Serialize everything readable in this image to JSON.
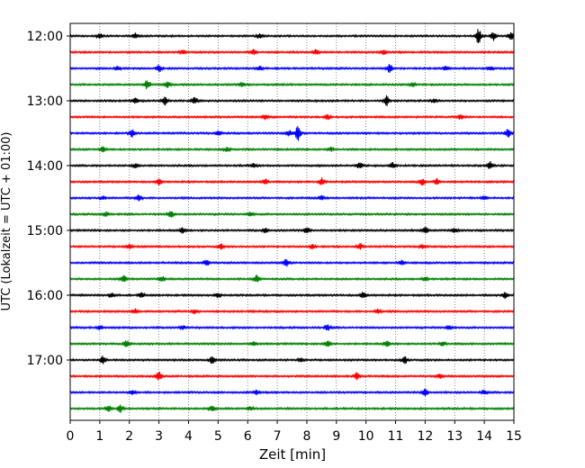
{
  "chart_data": {
    "type": "line",
    "title": "",
    "xlabel": "Zeit  [min]",
    "ylabel": "UTC (Lokalzeit = UTC + 01:00)",
    "xlim": [
      0,
      15
    ],
    "x_ticks": [
      "0",
      "1",
      "2",
      "3",
      "4",
      "5",
      "6",
      "7",
      "8",
      "9",
      "10",
      "11",
      "12",
      "13",
      "14",
      "15"
    ],
    "y_ticks": [
      "12:00",
      "13:00",
      "14:00",
      "15:00",
      "16:00",
      "17:00"
    ],
    "grid": "vertical dotted",
    "row_interval_minutes": 15,
    "trace_colors": [
      "#000000",
      "#ff0000",
      "#0000ff",
      "#008000"
    ],
    "series": [
      {
        "start": "12:00",
        "bursts": [
          [
            1.0,
            0.3
          ],
          [
            2.2,
            0.35
          ],
          [
            6.4,
            0.3
          ],
          [
            13.8,
            1.0
          ],
          [
            14.3,
            0.6
          ],
          [
            14.9,
            0.5
          ]
        ]
      },
      {
        "start": "12:15",
        "bursts": [
          [
            3.8,
            0.3
          ],
          [
            6.2,
            0.35
          ],
          [
            8.3,
            0.3
          ],
          [
            10.6,
            0.3
          ]
        ]
      },
      {
        "start": "12:30",
        "bursts": [
          [
            1.6,
            0.3
          ],
          [
            3.0,
            0.5
          ],
          [
            6.4,
            0.3
          ],
          [
            10.8,
            0.6
          ],
          [
            12.7,
            0.3
          ],
          [
            14.2,
            0.3
          ]
        ]
      },
      {
        "start": "12:45",
        "bursts": [
          [
            2.6,
            0.6
          ],
          [
            3.3,
            0.4
          ],
          [
            5.8,
            0.3
          ],
          [
            11.6,
            0.3
          ]
        ]
      },
      {
        "start": "13:00",
        "bursts": [
          [
            2.2,
            0.4
          ],
          [
            3.2,
            0.6
          ],
          [
            4.2,
            0.5
          ],
          [
            10.7,
            0.7
          ],
          [
            12.3,
            0.3
          ]
        ]
      },
      {
        "start": "13:15",
        "bursts": [
          [
            6.6,
            0.35
          ],
          [
            8.7,
            0.4
          ],
          [
            13.2,
            0.3
          ]
        ]
      },
      {
        "start": "13:30",
        "bursts": [
          [
            2.1,
            0.5
          ],
          [
            5.0,
            0.35
          ],
          [
            7.7,
            1.0
          ],
          [
            7.4,
            0.4
          ],
          [
            14.8,
            0.6
          ]
        ]
      },
      {
        "start": "13:45",
        "bursts": [
          [
            1.1,
            0.4
          ],
          [
            5.3,
            0.3
          ],
          [
            8.8,
            0.3
          ]
        ]
      },
      {
        "start": "14:00",
        "bursts": [
          [
            2.2,
            0.3
          ],
          [
            6.2,
            0.3
          ],
          [
            9.8,
            0.5
          ],
          [
            10.9,
            0.4
          ],
          [
            14.2,
            0.5
          ]
        ]
      },
      {
        "start": "14:15",
        "bursts": [
          [
            3.0,
            0.4
          ],
          [
            6.6,
            0.4
          ],
          [
            8.5,
            0.5
          ],
          [
            11.9,
            0.5
          ],
          [
            12.4,
            0.4
          ]
        ]
      },
      {
        "start": "14:30",
        "bursts": [
          [
            1.1,
            0.3
          ],
          [
            2.3,
            0.45
          ],
          [
            8.5,
            0.3
          ],
          [
            14.0,
            0.3
          ]
        ]
      },
      {
        "start": "14:45",
        "bursts": [
          [
            1.2,
            0.3
          ],
          [
            3.4,
            0.5
          ],
          [
            6.1,
            0.3
          ]
        ]
      },
      {
        "start": "15:00",
        "bursts": [
          [
            3.8,
            0.35
          ],
          [
            6.6,
            0.3
          ],
          [
            8.0,
            0.45
          ],
          [
            12.0,
            0.45
          ],
          [
            13.0,
            0.3
          ]
        ]
      },
      {
        "start": "15:15",
        "bursts": [
          [
            2.0,
            0.3
          ],
          [
            5.1,
            0.35
          ],
          [
            8.2,
            0.3
          ],
          [
            9.8,
            0.4
          ],
          [
            11.9,
            0.3
          ]
        ]
      },
      {
        "start": "15:30",
        "bursts": [
          [
            4.6,
            0.45
          ],
          [
            7.3,
            0.5
          ],
          [
            11.2,
            0.3
          ]
        ]
      },
      {
        "start": "15:45",
        "bursts": [
          [
            1.8,
            0.5
          ],
          [
            3.1,
            0.4
          ],
          [
            6.3,
            0.5
          ],
          [
            12.0,
            0.3
          ]
        ]
      },
      {
        "start": "16:00",
        "bursts": [
          [
            1.4,
            0.35
          ],
          [
            2.4,
            0.35
          ],
          [
            5.0,
            0.3
          ],
          [
            9.9,
            0.4
          ],
          [
            14.7,
            0.4
          ]
        ]
      },
      {
        "start": "16:15",
        "bursts": [
          [
            2.2,
            0.3
          ],
          [
            4.2,
            0.3
          ],
          [
            10.4,
            0.3
          ]
        ]
      },
      {
        "start": "16:30",
        "bursts": [
          [
            1.0,
            0.3
          ],
          [
            3.8,
            0.3
          ],
          [
            8.7,
            0.4
          ],
          [
            12.8,
            0.3
          ]
        ]
      },
      {
        "start": "16:45",
        "bursts": [
          [
            1.9,
            0.45
          ],
          [
            6.2,
            0.35
          ],
          [
            8.7,
            0.4
          ],
          [
            10.7,
            0.4
          ],
          [
            12.6,
            0.3
          ]
        ]
      },
      {
        "start": "17:00",
        "bursts": [
          [
            1.1,
            0.5
          ],
          [
            4.8,
            0.5
          ],
          [
            7.8,
            0.3
          ],
          [
            11.3,
            0.5
          ]
        ]
      },
      {
        "start": "17:15",
        "bursts": [
          [
            3.0,
            0.6
          ],
          [
            9.7,
            0.5
          ],
          [
            12.5,
            0.3
          ]
        ]
      },
      {
        "start": "17:30",
        "bursts": [
          [
            2.1,
            0.3
          ],
          [
            6.3,
            0.3
          ],
          [
            12.0,
            0.5
          ],
          [
            14.0,
            0.3
          ]
        ]
      },
      {
        "start": "17:45",
        "bursts": [
          [
            1.3,
            0.4
          ],
          [
            1.7,
            0.5
          ],
          [
            4.8,
            0.35
          ],
          [
            6.1,
            0.3
          ]
        ]
      }
    ]
  }
}
